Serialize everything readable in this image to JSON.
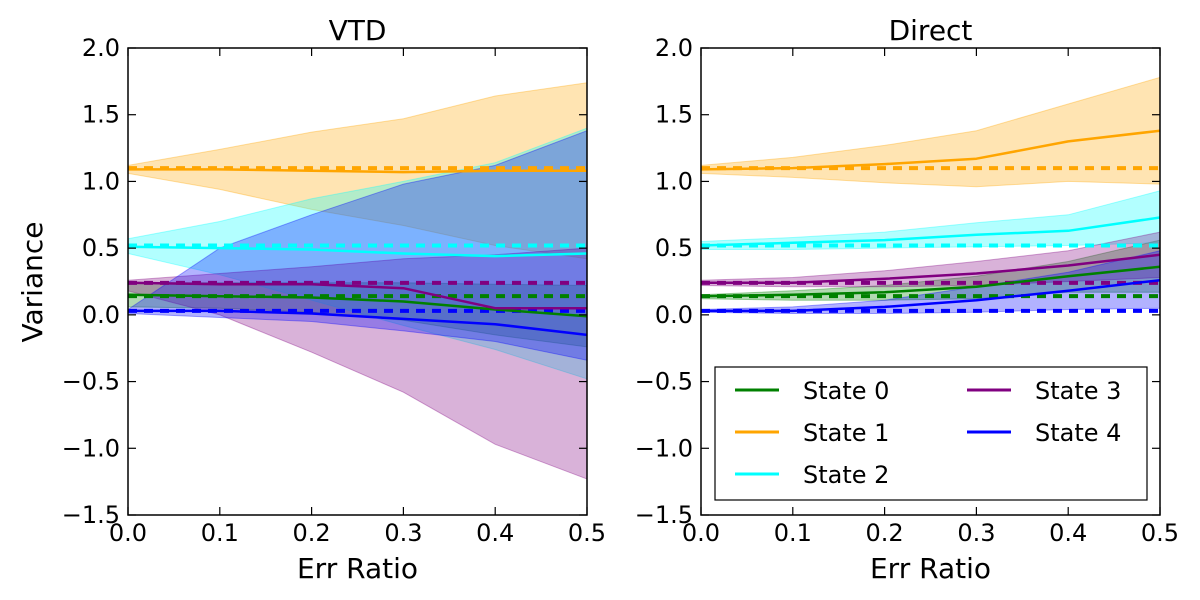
{
  "figure": {
    "ylabel": "Variance"
  },
  "legend": {
    "entries": [
      {
        "label": "State 0",
        "color": "#008000"
      },
      {
        "label": "State 1",
        "color": "#FFA500"
      },
      {
        "label": "State 2",
        "color": "#00FFFF"
      },
      {
        "label": "State 3",
        "color": "#800080"
      },
      {
        "label": "State 4",
        "color": "#0000FF"
      }
    ]
  },
  "chart_data": [
    {
      "type": "line",
      "title": "VTD",
      "xlabel": "Err Ratio",
      "ylabel": "Variance",
      "xlim": [
        0.0,
        0.5
      ],
      "ylim": [
        -1.5,
        2.0
      ],
      "x": [
        0.0,
        0.1,
        0.2,
        0.3,
        0.4,
        0.5
      ],
      "grid": false,
      "band_opacity": 0.3,
      "series": [
        {
          "name": "State 0",
          "color": "#008000",
          "mean": [
            0.15,
            0.14,
            0.13,
            0.1,
            0.04,
            -0.01
          ],
          "upper": [
            0.24,
            0.24,
            0.24,
            0.24,
            0.23,
            0.22
          ],
          "lower": [
            0.06,
            0.05,
            0.02,
            -0.04,
            -0.15,
            -0.24
          ],
          "reference": 0.14
        },
        {
          "name": "State 1",
          "color": "#FFA500",
          "mean": [
            1.09,
            1.09,
            1.08,
            1.07,
            1.08,
            1.08
          ],
          "upper": [
            1.12,
            1.24,
            1.37,
            1.47,
            1.64,
            1.74
          ],
          "lower": [
            1.06,
            0.94,
            0.79,
            0.67,
            0.52,
            0.42
          ],
          "reference": 1.1
        },
        {
          "name": "State 2",
          "color": "#00FFFF",
          "mean": [
            0.51,
            0.5,
            0.49,
            0.46,
            0.44,
            0.46
          ],
          "upper": [
            0.57,
            0.7,
            0.87,
            1.0,
            1.14,
            1.4
          ],
          "lower": [
            0.46,
            0.3,
            0.11,
            -0.08,
            -0.26,
            -0.48
          ],
          "reference": 0.52
        },
        {
          "name": "State 3",
          "color": "#800080",
          "mean": [
            0.24,
            0.23,
            0.23,
            0.2,
            0.05,
            0.05
          ],
          "upper": [
            0.26,
            0.31,
            0.36,
            0.42,
            0.45,
            0.5
          ],
          "lower": [
            0.18,
            0.0,
            -0.28,
            -0.58,
            -0.97,
            -1.23
          ],
          "reference": 0.24
        },
        {
          "name": "State 4",
          "color": "#0000FF",
          "mean": [
            0.03,
            0.03,
            0.01,
            -0.03,
            -0.07,
            -0.15
          ],
          "upper": [
            0.04,
            0.5,
            0.75,
            0.98,
            1.12,
            1.38
          ],
          "lower": [
            0.01,
            -0.02,
            -0.05,
            -0.12,
            -0.2,
            -0.34
          ],
          "reference": 0.03
        }
      ]
    },
    {
      "type": "line",
      "title": "Direct",
      "xlabel": "Err Ratio",
      "ylabel": "",
      "xlim": [
        0.0,
        0.5
      ],
      "ylim": [
        -1.5,
        2.0
      ],
      "x": [
        0.0,
        0.1,
        0.2,
        0.3,
        0.4,
        0.5
      ],
      "grid": false,
      "legend_position": "lower-right",
      "band_opacity": 0.3,
      "series": [
        {
          "name": "State 0",
          "color": "#008000",
          "mean": [
            0.14,
            0.15,
            0.17,
            0.21,
            0.29,
            0.36
          ],
          "upper": [
            0.15,
            0.18,
            0.22,
            0.29,
            0.4,
            0.56
          ],
          "lower": [
            0.12,
            0.11,
            0.11,
            0.12,
            0.17,
            0.17
          ],
          "reference": 0.14
        },
        {
          "name": "State 1",
          "color": "#FFA500",
          "mean": [
            1.09,
            1.1,
            1.13,
            1.17,
            1.3,
            1.38
          ],
          "upper": [
            1.12,
            1.18,
            1.27,
            1.38,
            1.58,
            1.78
          ],
          "lower": [
            1.06,
            1.03,
            0.99,
            0.96,
            1.0,
            0.98
          ],
          "reference": 1.1
        },
        {
          "name": "State 2",
          "color": "#00FFFF",
          "mean": [
            0.52,
            0.54,
            0.56,
            0.6,
            0.63,
            0.73
          ],
          "upper": [
            0.55,
            0.58,
            0.62,
            0.69,
            0.75,
            0.93
          ],
          "lower": [
            0.49,
            0.49,
            0.5,
            0.51,
            0.52,
            0.54
          ],
          "reference": 0.52
        },
        {
          "name": "State 3",
          "color": "#800080",
          "mean": [
            0.24,
            0.24,
            0.27,
            0.31,
            0.37,
            0.45
          ],
          "upper": [
            0.26,
            0.28,
            0.33,
            0.4,
            0.48,
            0.62
          ],
          "lower": [
            0.22,
            0.21,
            0.21,
            0.22,
            0.25,
            0.28
          ],
          "reference": 0.24
        },
        {
          "name": "State 4",
          "color": "#0000FF",
          "mean": [
            0.03,
            0.03,
            0.06,
            0.11,
            0.18,
            0.26
          ],
          "upper": [
            0.04,
            0.06,
            0.11,
            0.21,
            0.32,
            0.48
          ],
          "lower": [
            0.02,
            0.01,
            0.01,
            0.02,
            0.04,
            0.05
          ],
          "reference": 0.03
        }
      ]
    }
  ]
}
